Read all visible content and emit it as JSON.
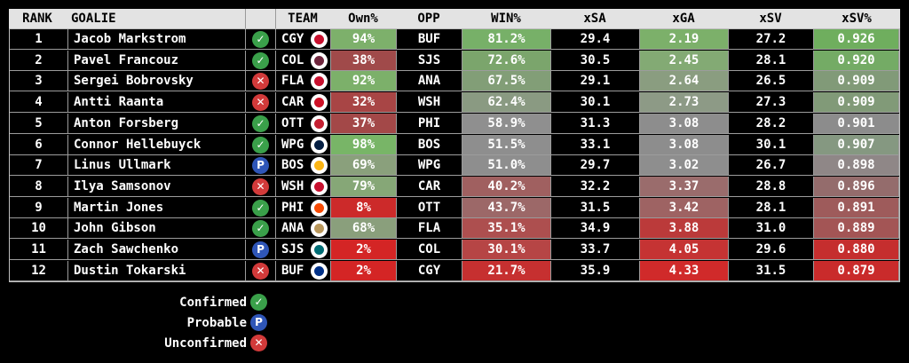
{
  "headers": [
    "RANK",
    "GOALIE",
    "",
    "TEAM",
    "Own%",
    "OPP",
    "WIN%",
    "xSA",
    "xGA",
    "xSV",
    "xSV%"
  ],
  "status_icons": {
    "confirmed": {
      "glyph": "✓",
      "color": "#3aa04a"
    },
    "probable": {
      "glyph": "P",
      "color": "#2f56b8"
    },
    "unconfirmed": {
      "glyph": "✕",
      "color": "#d23a3a"
    }
  },
  "rows": [
    {
      "rank": "1",
      "goalie": "Jacob Markstrom",
      "status": "confirmed",
      "team": "CGY",
      "logo": "#c8102e",
      "own": "94%",
      "own_color": "#7db06b",
      "opp": "BUF",
      "win": "81.2%",
      "win_color": "#77b068",
      "xsa": "29.4",
      "xsa_color": "#000000",
      "xga": "2.19",
      "xga_color": "#7cb06a",
      "xsv": "27.2",
      "xsv_color": "#000000",
      "xsvp": "0.926",
      "xsvp_color": "#6fae5e"
    },
    {
      "rank": "2",
      "goalie": "Pavel Francouz",
      "status": "confirmed",
      "team": "COL",
      "logo": "#6f263d",
      "own": "38%",
      "own_color": "#a04a4a",
      "opp": "SJS",
      "win": "72.6%",
      "win_color": "#7ba56c",
      "xsa": "30.5",
      "xsa_color": "#000000",
      "xga": "2.45",
      "xga_color": "#83aa74",
      "xsv": "28.1",
      "xsv_color": "#000000",
      "xsvp": "0.920",
      "xsvp_color": "#74ab65"
    },
    {
      "rank": "3",
      "goalie": "Sergei Bobrovsky",
      "status": "unconfirmed",
      "team": "FLA",
      "logo": "#c8102e",
      "own": "92%",
      "own_color": "#7cb06a",
      "opp": "ANA",
      "win": "67.5%",
      "win_color": "#829e77",
      "xsa": "29.1",
      "xsa_color": "#000000",
      "xga": "2.64",
      "xga_color": "#8a9d80",
      "xsv": "26.5",
      "xsv_color": "#000000",
      "xsvp": "0.909",
      "xsvp_color": "#819a78"
    },
    {
      "rank": "4",
      "goalie": "Antti Raanta",
      "status": "unconfirmed",
      "team": "CAR",
      "logo": "#ce1126",
      "own": "32%",
      "own_color": "#a84545",
      "opp": "WSH",
      "win": "62.4%",
      "win_color": "#8a9a82",
      "xsa": "30.1",
      "xsa_color": "#000000",
      "xga": "2.73",
      "xga_color": "#8d9a86",
      "xsv": "27.3",
      "xsv_color": "#000000",
      "xsvp": "0.909",
      "xsvp_color": "#819a78"
    },
    {
      "rank": "5",
      "goalie": "Anton Forsberg",
      "status": "confirmed",
      "team": "OTT",
      "logo": "#c52032",
      "own": "37%",
      "own_color": "#a34848",
      "opp": "PHI",
      "win": "58.9%",
      "win_color": "#8f8f8f",
      "xsa": "31.3",
      "xsa_color": "#000000",
      "xga": "3.08",
      "xga_color": "#8d8d8d",
      "xsv": "28.2",
      "xsv_color": "#000000",
      "xsvp": "0.901",
      "xsvp_color": "#8c8c8c"
    },
    {
      "rank": "6",
      "goalie": "Connor Hellebuyck",
      "status": "confirmed",
      "team": "WPG",
      "logo": "#041e42",
      "own": "98%",
      "own_color": "#78b567",
      "opp": "BOS",
      "win": "51.5%",
      "win_color": "#8e8e8e",
      "xsa": "33.1",
      "xsa_color": "#000000",
      "xga": "3.08",
      "xga_color": "#8d8d8d",
      "xsv": "30.1",
      "xsv_color": "#000000",
      "xsvp": "0.907",
      "xsvp_color": "#859881"
    },
    {
      "rank": "7",
      "goalie": "Linus Ullmark",
      "status": "probable",
      "team": "BOS",
      "logo": "#fcb514",
      "own": "69%",
      "own_color": "#8aa07c",
      "opp": "WPG",
      "win": "51.0%",
      "win_color": "#8e8e8e",
      "xsa": "29.7",
      "xsa_color": "#000000",
      "xga": "3.02",
      "xga_color": "#8e8e8e",
      "xsv": "26.7",
      "xsv_color": "#000000",
      "xsvp": "0.898",
      "xsvp_color": "#8f8787"
    },
    {
      "rank": "8",
      "goalie": "Ilya Samsonov",
      "status": "unconfirmed",
      "team": "WSH",
      "logo": "#c8102e",
      "own": "79%",
      "own_color": "#86a777",
      "opp": "CAR",
      "win": "40.2%",
      "win_color": "#a06060",
      "xsa": "32.2",
      "xsa_color": "#000000",
      "xga": "3.37",
      "xga_color": "#9a6c6c",
      "xsv": "28.8",
      "xsv_color": "#000000",
      "xsvp": "0.896",
      "xsvp_color": "#946c6c"
    },
    {
      "rank": "9",
      "goalie": "Martin Jones",
      "status": "confirmed",
      "team": "PHI",
      "logo": "#f74902",
      "own": "8%",
      "own_color": "#cc2a2a",
      "opp": "OTT",
      "win": "43.7%",
      "win_color": "#9c6868",
      "xsa": "31.5",
      "xsa_color": "#000000",
      "xga": "3.42",
      "xga_color": "#9e6363",
      "xsv": "28.1",
      "xsv_color": "#000000",
      "xsvp": "0.891",
      "xsvp_color": "#9e5b5b"
    },
    {
      "rank": "10",
      "goalie": "John Gibson",
      "status": "confirmed",
      "team": "ANA",
      "logo": "#b9975b",
      "own": "68%",
      "own_color": "#8a9f7c",
      "opp": "FLA",
      "win": "35.1%",
      "win_color": "#ad4f4f",
      "xsa": "34.9",
      "xsa_color": "#000000",
      "xga": "3.88",
      "xga_color": "#bb3a3a",
      "xsv": "31.0",
      "xsv_color": "#000000",
      "xsvp": "0.889",
      "xsvp_color": "#a35555"
    },
    {
      "rank": "11",
      "goalie": "Zach Sawchenko",
      "status": "probable",
      "team": "SJS",
      "logo": "#006d75",
      "own": "2%",
      "own_color": "#d42525",
      "opp": "COL",
      "win": "30.1%",
      "win_color": "#b64545",
      "xsa": "33.7",
      "xsa_color": "#000000",
      "xga": "4.05",
      "xga_color": "#c53333",
      "xsv": "29.6",
      "xsv_color": "#000000",
      "xsvp": "0.880",
      "xsvp_color": "#c52e2e"
    },
    {
      "rank": "12",
      "goalie": "Dustin Tokarski",
      "status": "unconfirmed",
      "team": "BUF",
      "logo": "#003087",
      "own": "2%",
      "own_color": "#d42525",
      "opp": "CGY",
      "win": "21.7%",
      "win_color": "#c63030",
      "xsa": "35.9",
      "xsa_color": "#000000",
      "xga": "4.33",
      "xga_color": "#d02a2a",
      "xsv": "31.5",
      "xsv_color": "#000000",
      "xsvp": "0.879",
      "xsvp_color": "#c92b2b"
    }
  ],
  "legend": [
    {
      "label": "Confirmed",
      "status": "confirmed"
    },
    {
      "label": "Probable",
      "status": "probable"
    },
    {
      "label": "Unconfirmed",
      "status": "unconfirmed"
    }
  ]
}
